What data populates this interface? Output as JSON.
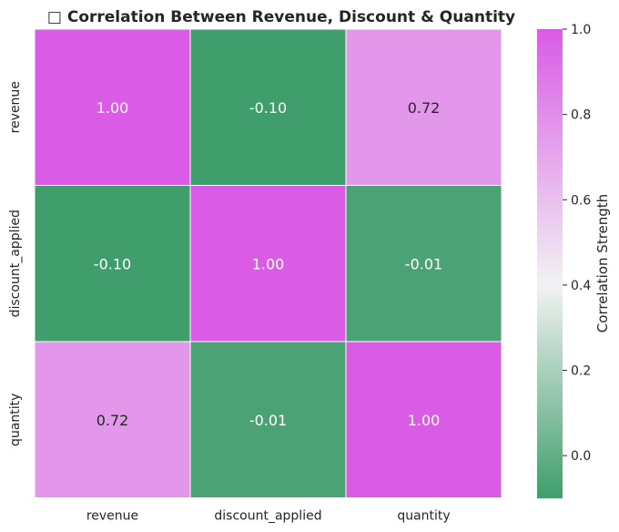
{
  "chart_data": {
    "type": "heatmap",
    "title": "□ Correlation Between Revenue, Discount & Quantity",
    "rows": [
      "revenue",
      "discount_applied",
      "quantity"
    ],
    "columns": [
      "revenue",
      "discount_applied",
      "quantity"
    ],
    "values": [
      [
        1.0,
        -0.1,
        0.72
      ],
      [
        -0.1,
        1.0,
        -0.01
      ],
      [
        0.72,
        -0.01,
        1.0
      ]
    ],
    "value_format": "0.00",
    "colorbar": {
      "label": "Correlation Strength",
      "range": [
        -0.1,
        1.0
      ],
      "ticks": [
        "0.0",
        "0.2",
        "0.4",
        "0.6",
        "0.8",
        "1.0"
      ],
      "colors": {
        "low": "#3f9e6c",
        "mid": "#f2f2f2",
        "high": "#d95be6"
      }
    },
    "grid_line_color": "#ffffff",
    "cell_text_colors": {
      "dark_cell": "#ffffff",
      "light_cell": "#262626"
    }
  }
}
